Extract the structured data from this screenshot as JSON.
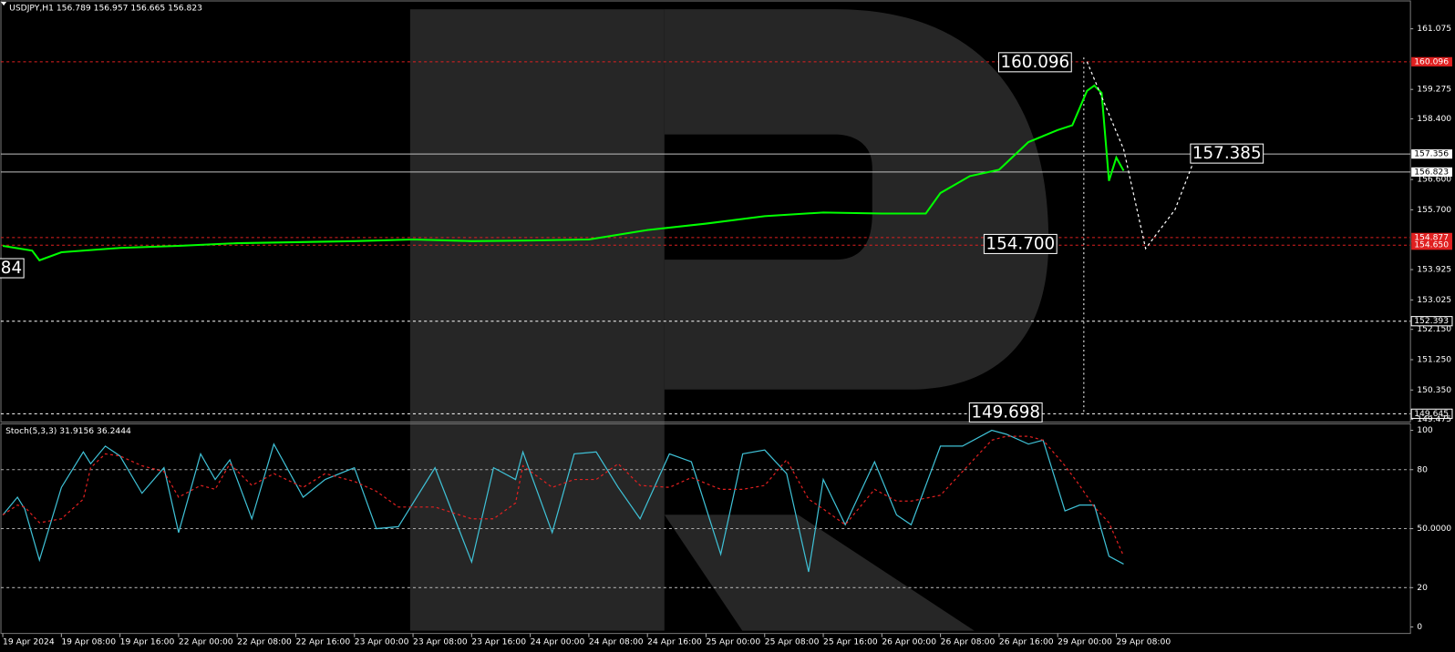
{
  "chart_data": [
    {
      "type": "line",
      "title": "USDJPY,H1  156.789 156.957 156.665 156.823",
      "xlim": [
        0,
        190
      ],
      "xticks": [
        {
          "value": 0,
          "label": "19 Apr 2024"
        },
        {
          "value": 8,
          "label": "19 Apr 08:00"
        },
        {
          "value": 16,
          "label": "19 Apr 16:00"
        },
        {
          "value": 24,
          "label": "22 Apr 00:00"
        },
        {
          "value": 32,
          "label": "22 Apr 08:00"
        },
        {
          "value": 40,
          "label": "22 Apr 16:00"
        },
        {
          "value": 48,
          "label": "23 Apr 00:00"
        },
        {
          "value": 56,
          "label": "23 Apr 08:00"
        },
        {
          "value": 64,
          "label": "23 Apr 16:00"
        },
        {
          "value": 72,
          "label": "24 Apr 00:00"
        },
        {
          "value": 80,
          "label": "24 Apr 08:00"
        },
        {
          "value": 88,
          "label": "24 Apr 16:00"
        },
        {
          "value": 96,
          "label": "25 Apr 00:00"
        },
        {
          "value": 104,
          "label": "25 Apr 08:00"
        },
        {
          "value": 112,
          "label": "25 Apr 16:00"
        },
        {
          "value": 120,
          "label": "26 Apr 00:00"
        },
        {
          "value": 128,
          "label": "26 Apr 08:00"
        },
        {
          "value": 136,
          "label": "26 Apr 16:00"
        },
        {
          "value": 144,
          "label": "29 Apr 00:00"
        },
        {
          "value": 152,
          "label": "29 Apr 08:00"
        }
      ],
      "ylim": [
        149.4,
        161.93
      ],
      "yticks": [
        161.075,
        {
          "value": 159.275,
          "label": "159.275"
        },
        {
          "value": 158.4,
          "label": "158.400"
        },
        {
          "value": 156.6,
          "label": "156.600"
        },
        {
          "value": 155.7,
          "label": "155.700"
        },
        153.925,
        153.025,
        {
          "value": 152.15,
          "label": "152.150"
        },
        {
          "value": 151.25,
          "label": "151.250"
        },
        {
          "value": 150.35,
          "label": "150.350"
        },
        149.475
      ],
      "levels": [
        {
          "value": 160.096,
          "label": "160.096",
          "color": "#e02020"
        },
        {
          "value": 157.356,
          "label": "157.356",
          "color": "#c0c0c0"
        },
        {
          "value": 156.823,
          "label": "156.823",
          "color": "#c0c0c0"
        },
        {
          "value": 154.877,
          "label": "154.877",
          "color": "#e02020"
        },
        {
          "value": 154.65,
          "label": "154.650",
          "color": "#e02020"
        },
        {
          "value": 152.393,
          "label": "152.393",
          "color": "#ffffff"
        },
        {
          "value": 149.645,
          "label": "149.645",
          "color": "#ffffff"
        }
      ],
      "series": [
        {
          "color": "#00ff00",
          "x": [
            0,
            4,
            5,
            8,
            16,
            24,
            32,
            40,
            48,
            56,
            64,
            72,
            80,
            88,
            96,
            104,
            112,
            120,
            124,
            126,
            128,
            132,
            136,
            140,
            144,
            146,
            148,
            149,
            150,
            151,
            152,
            153
          ],
          "values": [
            154.63,
            154.49,
            154.2,
            154.44,
            154.57,
            154.63,
            154.71,
            154.74,
            154.77,
            154.82,
            154.77,
            154.79,
            154.82,
            155.1,
            155.29,
            155.51,
            155.62,
            155.59,
            155.59,
            155.59,
            156.2,
            156.7,
            156.89,
            157.71,
            158.07,
            158.21,
            159.23,
            159.39,
            159.17,
            156.56,
            157.25,
            156.86
          ]
        },
        {
          "color": "#ffffff",
          "x": [
            148,
            153,
            156,
            160,
            163
          ],
          "values": [
            160.1,
            157.5,
            154.55,
            155.7,
            157.38
          ]
        }
      ],
      "annotations": [
        {
          "label": "160.096",
          "value": 160.096,
          "x": 146
        },
        {
          "label": "157.385",
          "value": 157.385,
          "x": 162
        },
        {
          "label": "154.700",
          "value": 154.7,
          "x": 144
        },
        {
          "label": "149.698",
          "value": 149.698,
          "x": 142
        },
        {
          "label": "84",
          "value": 153.98,
          "x": 3
        }
      ]
    },
    {
      "type": "line",
      "title": "Stoch(5,3,3) 31.9156 36.2444",
      "xlim": [
        0,
        190
      ],
      "ylim": [
        -3.3,
        103.3
      ],
      "yticks": [
        100,
        80,
        {
          "value": 50,
          "label": "50.0000"
        },
        20,
        0
      ],
      "grid": [
        80,
        50,
        20
      ],
      "series": [
        {
          "color": "#3fc1d6",
          "x": [
            0,
            2,
            3,
            5,
            8,
            11,
            12,
            14,
            16,
            19,
            22,
            24,
            27,
            29,
            31,
            34,
            37,
            41,
            44,
            48,
            51,
            54,
            59,
            64,
            67,
            70,
            71,
            75,
            78,
            81,
            84,
            87,
            91,
            94,
            98,
            101,
            104,
            107,
            110,
            112,
            115,
            119,
            122,
            124,
            128,
            131,
            135,
            137,
            140,
            142,
            145,
            147,
            149,
            151,
            153
          ],
          "values": [
            57,
            66,
            60,
            34,
            71,
            89,
            83,
            92,
            87,
            68,
            81,
            48,
            88,
            75,
            85,
            55,
            93,
            66,
            75,
            81,
            50,
            51,
            81,
            33,
            81,
            75,
            89,
            48,
            88,
            89,
            71,
            55,
            88,
            84,
            37,
            88,
            90,
            78,
            28,
            75,
            52,
            84,
            57,
            52,
            92,
            92,
            100,
            98,
            93,
            95,
            59,
            62,
            62,
            36,
            32
          ]
        },
        {
          "color": "#e02020",
          "x": [
            0,
            2,
            3,
            5,
            8,
            11,
            12,
            14,
            16,
            19,
            22,
            24,
            27,
            29,
            31,
            34,
            37,
            41,
            44,
            48,
            51,
            54,
            59,
            64,
            67,
            70,
            71,
            75,
            78,
            81,
            84,
            87,
            91,
            94,
            98,
            101,
            104,
            107,
            110,
            112,
            115,
            119,
            122,
            124,
            128,
            131,
            135,
            137,
            140,
            142,
            145,
            147,
            149,
            151,
            153
          ],
          "values": [
            57,
            62,
            61,
            53,
            55,
            65,
            81,
            88,
            87,
            82,
            79,
            66,
            72,
            70,
            83,
            72,
            78,
            71,
            78,
            74,
            69,
            61,
            61,
            55,
            55,
            63,
            82,
            71,
            75,
            75,
            83,
            72,
            71,
            76,
            70,
            70,
            72,
            85,
            65,
            60,
            52,
            70,
            64,
            64,
            67,
            79,
            95,
            97,
            97,
            95,
            82,
            72,
            61,
            53,
            36
          ]
        }
      ]
    }
  ]
}
